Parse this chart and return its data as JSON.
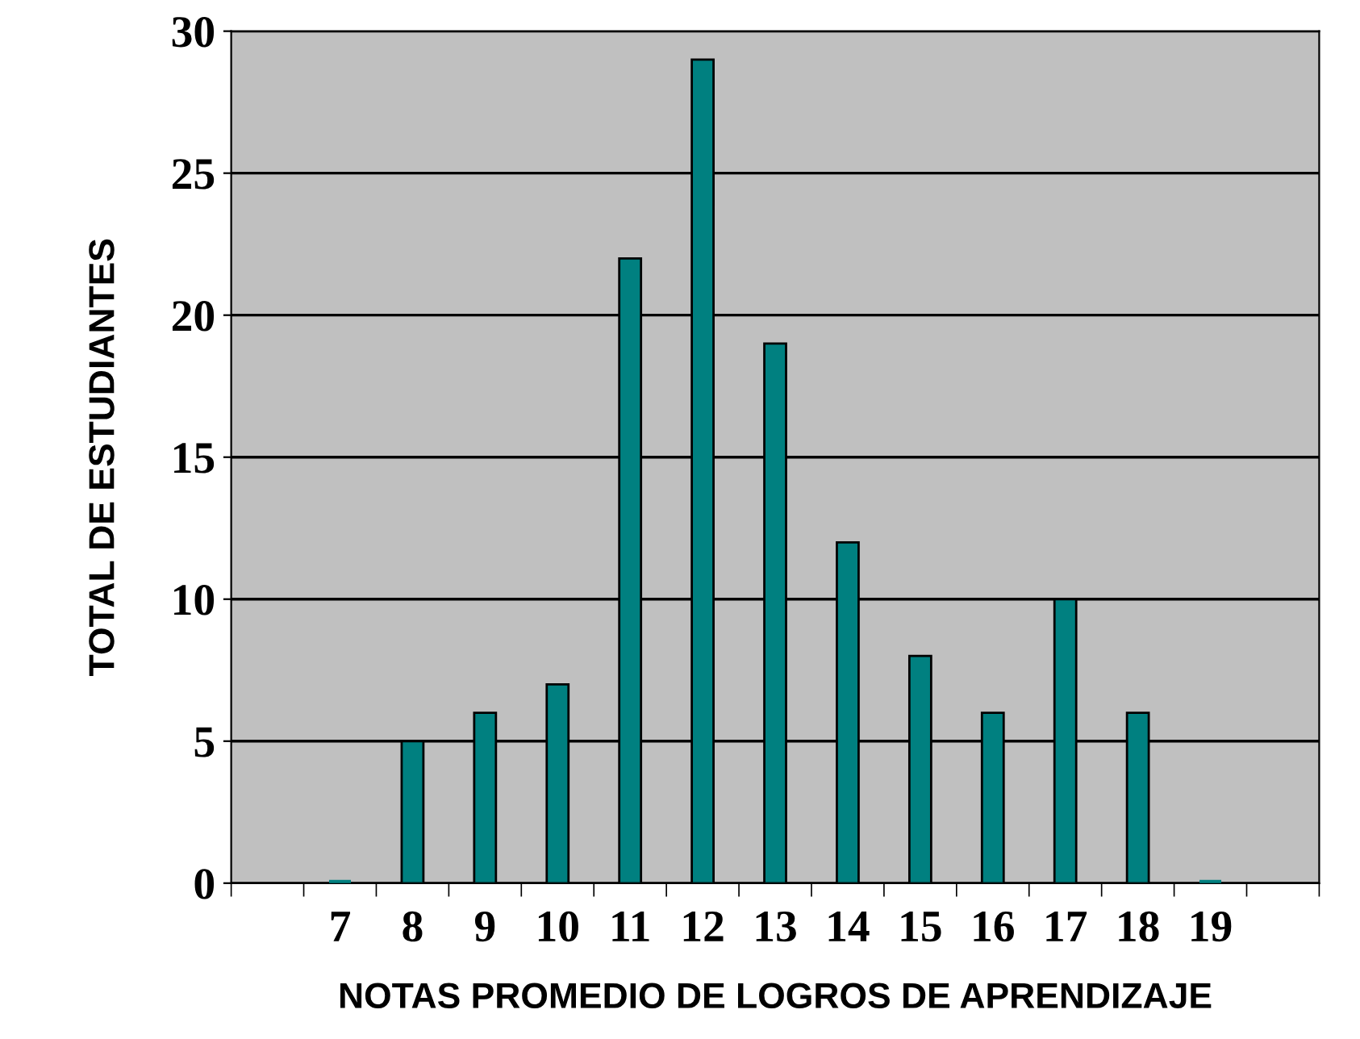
{
  "chart_data": {
    "type": "bar",
    "xlabel": "NOTAS PROMEDIO DE LOGROS DE APRENDIZAJE",
    "ylabel": "TOTAL DE ESTUDIANTES",
    "categories": [
      null,
      "7",
      "8",
      "9",
      "10",
      "11",
      "12",
      "13",
      "14",
      "15",
      "16",
      "17",
      "18",
      "19",
      null
    ],
    "values": [
      null,
      0,
      5,
      6,
      7,
      22,
      29,
      19,
      12,
      8,
      6,
      10,
      6,
      0,
      null
    ],
    "color": "#008080",
    "ylim": [
      0,
      30
    ],
    "yticks": [
      0,
      5,
      10,
      15,
      20,
      25,
      30
    ],
    "grid": "y",
    "legend": false
  }
}
